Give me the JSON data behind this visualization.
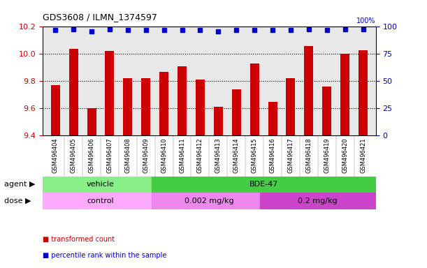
{
  "title": "GDS3608 / ILMN_1374597",
  "samples": [
    "GSM496404",
    "GSM496405",
    "GSM496406",
    "GSM496407",
    "GSM496408",
    "GSM496409",
    "GSM496410",
    "GSM496411",
    "GSM496412",
    "GSM496413",
    "GSM496414",
    "GSM496415",
    "GSM496416",
    "GSM496417",
    "GSM496418",
    "GSM496419",
    "GSM496420",
    "GSM496421"
  ],
  "bar_values": [
    9.77,
    10.04,
    9.6,
    10.02,
    9.82,
    9.82,
    9.87,
    9.91,
    9.81,
    9.61,
    9.74,
    9.93,
    9.65,
    9.82,
    10.06,
    9.76,
    10.0,
    10.03
  ],
  "percentile_values": [
    97,
    98,
    96,
    98,
    97,
    97,
    97,
    97,
    97,
    96,
    97,
    97,
    97,
    97,
    98,
    97,
    98,
    98
  ],
  "ylim_left": [
    9.4,
    10.2
  ],
  "ylim_right": [
    0,
    100
  ],
  "yticks_left": [
    9.4,
    9.6,
    9.8,
    10.0,
    10.2
  ],
  "yticks_right": [
    0,
    25,
    50,
    75,
    100
  ],
  "bar_color": "#cc0000",
  "dot_color": "#0000cc",
  "agent_groups": [
    {
      "label": "vehicle",
      "start": 0,
      "end": 6,
      "color": "#99ff99"
    },
    {
      "label": "BDE-47",
      "start": 6,
      "end": 18,
      "color": "#66dd66"
    }
  ],
  "dose_groups": [
    {
      "label": "control",
      "start": 0,
      "end": 6,
      "color": "#ffaaff"
    },
    {
      "label": "0.002 mg/kg",
      "start": 6,
      "end": 12,
      "color": "#dd88dd"
    },
    {
      "label": "0.2 mg/kg",
      "start": 12,
      "end": 18,
      "color": "#cc66cc"
    }
  ],
  "legend_items": [
    {
      "label": "transformed count",
      "color": "#cc0000",
      "marker": "s"
    },
    {
      "label": "percentile rank within the sample",
      "color": "#0000cc",
      "marker": "s"
    }
  ],
  "grid_color": "black",
  "bg_color": "#e8e8e8",
  "agent_label": "agent",
  "dose_label": "dose"
}
